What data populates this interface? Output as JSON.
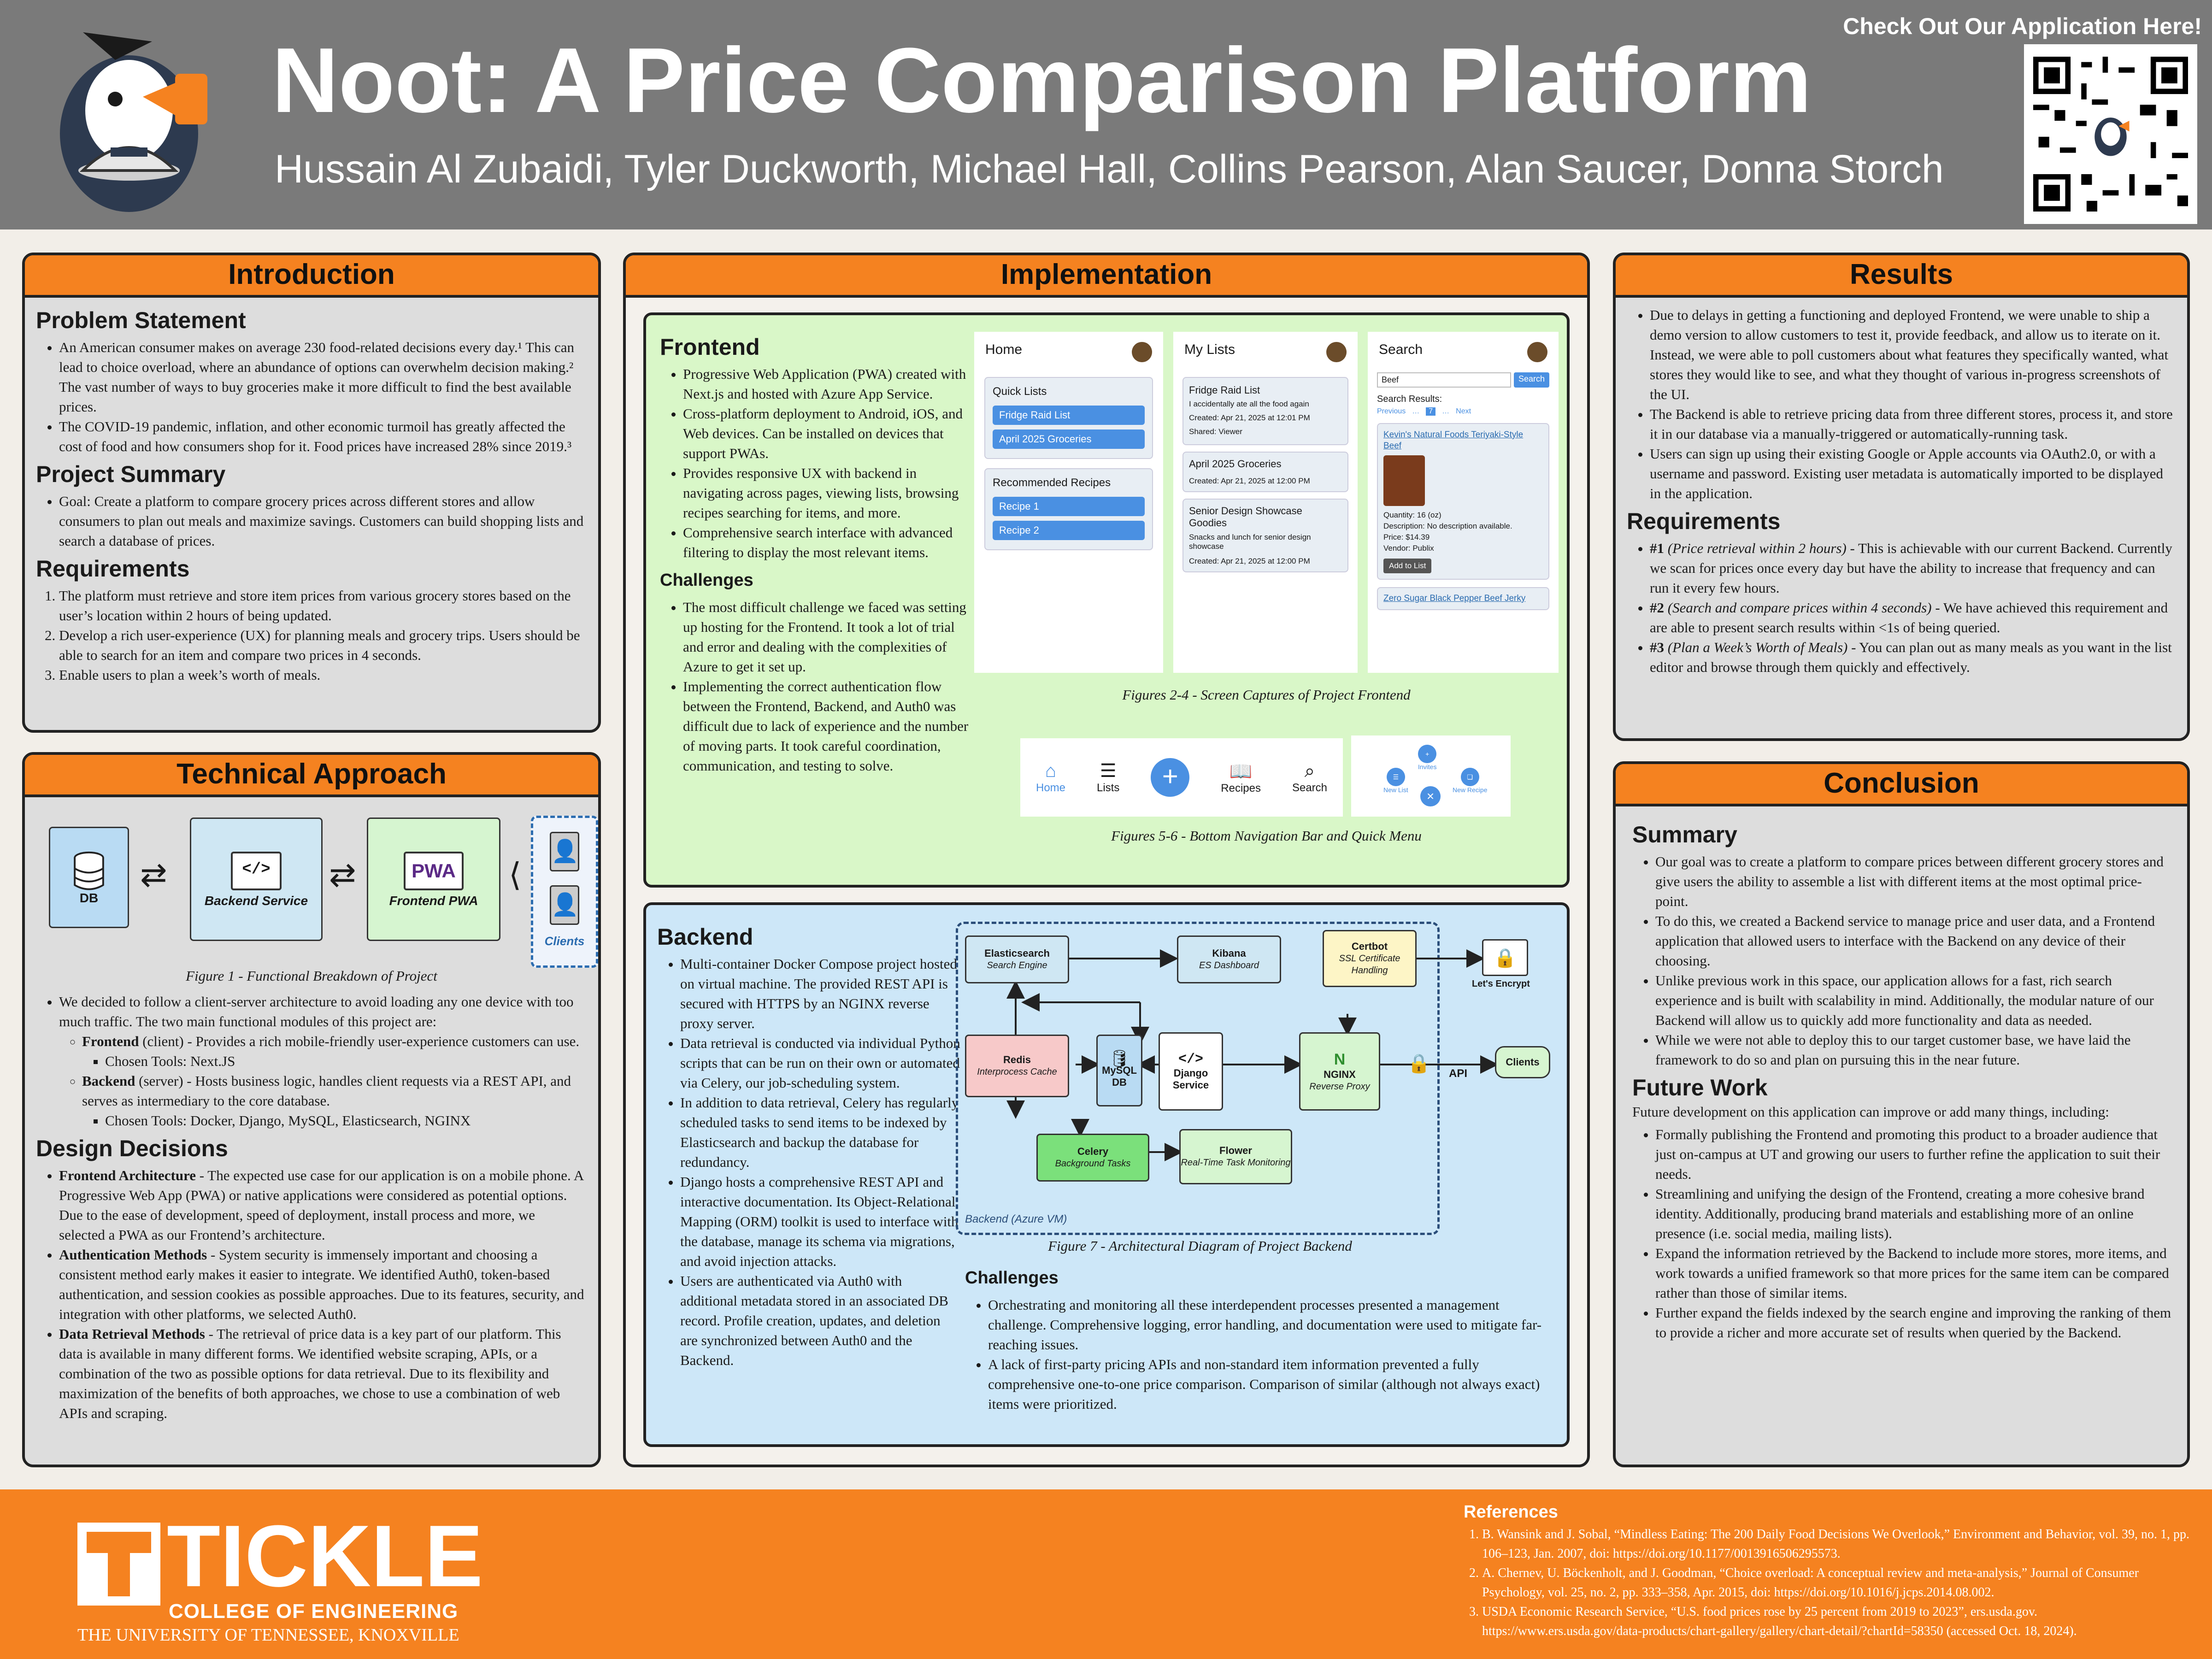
{
  "header": {
    "title": "Noot: A Price Comparison Platform",
    "authors": "Hussain Al Zubaidi, Tyler Duckworth, Michael Hall, Collins Pearson, Alan Saucer, Donna Storch",
    "qr_caption": "Check Out Our Application Here!"
  },
  "intro": {
    "heading": "Introduction",
    "problem_title": "Problem Statement",
    "problem": [
      "An American consumer makes on average 230 food-related decisions every day.¹ This can lead to choice overload, where an abundance of options can overwhelm decision making.² The vast number of ways to buy groceries make it more difficult to find the best available prices.",
      "The COVID-19 pandemic, inflation, and other economic turmoil has greatly affected the cost of food and how consumers shop for it. Food prices have increased 28% since 2019.³"
    ],
    "summary_title": "Project Summary",
    "summary": "Goal: Create a platform to compare grocery prices across different stores and allow consumers to plan out meals and maximize savings. Customers can build shopping lists and search a database of prices.",
    "req_title": "Requirements",
    "reqs": [
      "The platform must retrieve and store item prices from various grocery stores based on the user’s location within 2 hours of being updated.",
      "Develop a rich user-experience (UX) for planning meals and grocery trips. Users should be able to search for an item and compare two prices in 4 seconds.",
      "Enable users to plan a week’s worth of meals."
    ]
  },
  "tech": {
    "heading": "Technical Approach",
    "fig_db": "DB",
    "fig_backend": "Backend Service",
    "fig_frontend": "Frontend PWA",
    "fig_pwa": "PWA",
    "fig_clients": "Clients",
    "fig_caption": "Figure 1 - Functional Breakdown of Project",
    "intro": "We decided to follow a client-server architecture to avoid loading any one device with too much traffic. The two main functional modules of this project are:",
    "frontend_b": "Frontend",
    "frontend_t": " (client) - Provides a rich mobile-friendly user-experience customers can use.",
    "frontend_tools": "Chosen Tools: Next.JS",
    "backend_b": "Backend",
    "backend_t": " (server) - Hosts business logic, handles client requests via a REST API, and serves as intermediary to the core database.",
    "backend_tools": "Chosen Tools: Docker, Django, MySQL, Elasticsearch, NGINX",
    "design_title": "Design Decisions",
    "d1_b": "Frontend Architecture",
    "d1_t": " - The expected use case for our application is on a mobile phone. A Progressive Web App (PWA) or native applications were considered as potential options. Due to the ease of development, speed of deployment, install process and more, we selected a PWA as our Frontend’s architecture.",
    "d2_b": "Authentication Methods",
    "d2_t": " - System security is immensely important and choosing a consistent method early makes it easier to integrate. We identified Auth0, token-based authentication, and session cookies as possible approaches. Due to its features, security, and integration with other platforms, we selected Auth0.",
    "d3_b": "Data Retrieval Methods",
    "d3_t": " - The retrieval of price data is a key part of our platform. This data is available in many different forms. We identified website scraping, APIs, or a combination of the two as possible options for data retrieval. Due to its flexibility and maximization of the benefits of both approaches, we chose to use a combination of web APIs and scraping."
  },
  "impl": {
    "heading": "Implementation",
    "fe_title": "Frontend",
    "fe": [
      "Progressive Web Application (PWA) created with Next.js and hosted with Azure App Service.",
      "Cross-platform deployment to Android, iOS, and Web devices. Can be installed on devices that support PWAs.",
      "Provides responsive UX with backend in navigating across pages, viewing lists, browsing recipes searching for items, and more.",
      "Comprehensive search interface with advanced filtering to display the most relevant items."
    ],
    "fe_ch_title": "Challenges",
    "fe_ch": [
      "The most difficult challenge we faced was setting up hosting for the Frontend. It took a lot of trial and error and dealing with the complexities of Azure to get it set up.",
      "Implementing the correct authentication flow between the Frontend, Backend, and Auth0 was difficult due to lack of experience and the number of moving parts. It took careful coordination, communication, and testing to solve."
    ],
    "shots": {
      "home": "Home",
      "quick": "Quick Lists",
      "q1": "Fridge Raid List",
      "q2": "April 2025 Groceries",
      "rec": "Recommended Recipes",
      "r1": "Recipe 1",
      "r2": "Recipe 2",
      "mylists": "My Lists",
      "l1": "Fridge Raid List",
      "l1d": "I accidentally ate all the food again",
      "l1c": "Created: Apr 21, 2025 at 12:01 PM",
      "l1s": "Shared: Viewer",
      "l2": "April 2025 Groceries",
      "l2c": "Created: Apr 21, 2025 at 12:00 PM",
      "l3": "Senior Design Showcase Goodies",
      "l3d": "Snacks and lunch for senior design showcase",
      "l3c": "Created: Apr 21, 2025 at 12:00 PM",
      "search": "Search",
      "query": "Beef",
      "search_btn": "Search",
      "results": "Search Results:",
      "prev": "Previous",
      "next": "Next",
      "item1": "Kevin's Natural Foods Teriyaki-Style Beef",
      "qty": "Quantity: 16 (oz)",
      "desc": "Description: No description available.",
      "price": "Price: $14.39",
      "vendor": "Vendor: Publix",
      "add": "Add to List",
      "item2": "Zero Sugar Black Pepper Beef Jerky"
    },
    "cap1": "Figures 2-4 - Screen Captures of Project Frontend",
    "nav": [
      "Home",
      "Lists",
      "Recipes",
      "Search"
    ],
    "menu": [
      "New List",
      "Invites",
      "New Recipe"
    ],
    "cap2": "Figures 5-6 - Bottom Navigation Bar and Quick Menu",
    "be_title": "Backend",
    "be": [
      "Multi-container Docker Compose project hosted on virtual machine. The provided REST API is secured with HTTPS by an NGINX reverse proxy server.",
      "Data retrieval is conducted via individual Python scripts that can be run on their own or automated via Celery, our job-scheduling system.",
      "In addition to data retrieval, Celery has regularly scheduled tasks to send items to be indexed by Elasticsearch and backup the database for redundancy.",
      "Django hosts a comprehensive REST API and interactive documentation. Its Object-Relational Mapping (ORM) toolkit is used to interface with the database, manage its schema via migrations, and avoid injection attacks.",
      "Users are authenticated via Auth0 with additional metadata stored in an associated DB record. Profile creation, updates, and deletion are synchronized between Auth0 and the Backend."
    ],
    "arch": {
      "es_b": "Elasticsearch",
      "es_i": "Search Engine",
      "kb_b": "Kibana",
      "kb_i": "ES Dashboard",
      "cb_b": "Certbot",
      "cb_i": "SSL Certificate Handling",
      "le": "Let's Encrypt",
      "rd_b": "Redis",
      "rd_i": "Interprocess Cache",
      "my_b": "MySQL DB",
      "dj_b": "Django Service",
      "ng_b": "NGINX",
      "ng_i": "Reverse Proxy",
      "api": "API",
      "clients": "Clients",
      "ce_b": "Celery",
      "ce_i": "Background Tasks",
      "fl_b": "Flower",
      "fl_i": "Real-Time Task Monitoring",
      "vm": "Backend (Azure VM)"
    },
    "cap3": "Figure 7 - Architectural Diagram of Project Backend",
    "be_ch_title": "Challenges",
    "be_ch": [
      "Orchestrating and monitoring all these interdependent processes presented a management challenge. Comprehensive logging, error handling, and documentation were used to mitigate far-reaching issues.",
      "A lack of first-party pricing APIs and non-standard item information prevented a fully comprehensive one-to-one price comparison. Comparison of similar (although not always exact) items were prioritized."
    ]
  },
  "results": {
    "heading": "Results",
    "items": [
      "Due to delays in getting a functioning and deployed Frontend, we were unable to ship a demo version to allow customers to test it, provide feedback, and allow us to iterate on it. Instead, we were able to poll customers about what features they specifically wanted, what stores they would like to see, and what they thought of various in-progress screenshots of the UI.",
      "The Backend is able to retrieve pricing data from three different stores, process it, and store it in our database via a manually-triggered or automatically-running task.",
      "Users can sign up using their existing Google or Apple accounts via OAuth2.0, or with a username and password. Existing user metadata is automatically imported to be displayed in the application."
    ],
    "req_title": "Requirements",
    "r1_b": "#1",
    "r1_i": " (Price retrieval within 2 hours)",
    "r1_t": " - This is achievable with our current Backend. Currently we scan for prices once every day but have the ability to increase that frequency and can run it every few hours.",
    "r2_b": "#2",
    "r2_i": " (Search and compare prices within 4 seconds)",
    "r2_t": " - We have achieved this requirement and are able to present search results within <1s of being queried.",
    "r3_b": "#3",
    "r3_i": " (Plan a Week’s Worth of Meals)",
    "r3_t": " - You can plan out as many meals as you want in the list editor and browse through them quickly and effectively."
  },
  "conclusion": {
    "heading": "Conclusion",
    "sum_title": "Summary",
    "summary": [
      "Our goal was to create a platform to compare prices between different grocery stores and give users the ability to assemble a list with different items at the most optimal price-point.",
      "To do this, we created a Backend service to manage price and user data, and a Frontend application that allowed users to interface with the Backend on any device of their choosing.",
      "Unlike previous work in this space, our application allows for a fast, rich search experience and is built with scalability in mind. Additionally, the modular nature of our Backend will allow us to quickly add more functionality and data as needed.",
      "While we were not able to deploy this to our target customer base, we have laid the framework to do so and plan on pursuing this in the near future."
    ],
    "fw_title": "Future Work",
    "fw_intro": "Future development on this application can improve or add many things, including:",
    "future": [
      "Formally publishing the Frontend and promoting this product to a broader audience that just on-campus at UT and growing our users to further refine the application to suit their needs.",
      "Streamlining and unifying the design of the Frontend, creating a more cohesive brand identity. Additionally, producing brand materials and establishing more of an online presence (i.e. social media, mailing lists).",
      "Expand the information retrieved by the Backend to include more stores, more items, and work towards a unified framework so that more prices for the same item can be compared rather than those of similar items.",
      "Further expand the fields indexed by the search engine and improving the ranking of them to provide a richer and more accurate set of results when queried by the Backend."
    ]
  },
  "footer": {
    "logo_main": "TICKLE",
    "logo_sub": "COLLEGE OF ENGINEERING",
    "logo_univ": "THE UNIVERSITY OF TENNESSEE, KNOXVILLE",
    "ref_title": "References",
    "refs": [
      "B. Wansink and J. Sobal, “Mindless Eating: The 200 Daily Food Decisions We Overlook,” Environment and Behavior, vol. 39, no. 1, pp. 106–123, Jan. 2007, doi: https://doi.org/10.1177/0013916506295573.",
      "A. Chernev, U. Böckenholt, and J. Goodman, “Choice overload: A conceptual review and meta-analysis,” Journal of Consumer Psychology, vol. 25, no. 2, pp. 333–358, Apr. 2015, doi: https://doi.org/10.1016/j.jcps.2014.08.002.",
      "USDA Economic Research Service, “U.S. food prices rose by 25 percent from 2019 to 2023”, ers.usda.gov. https://www.ers.usda.gov/data-products/chart-gallery/gallery/chart-detail/?chartId=58350 (accessed Oct. 18, 2024)."
    ]
  },
  "colors": {
    "orange": "#f58220",
    "header_gray": "#7a7a7a",
    "green_panel": "#d9f7c8",
    "blue_panel": "#cde7f8"
  }
}
